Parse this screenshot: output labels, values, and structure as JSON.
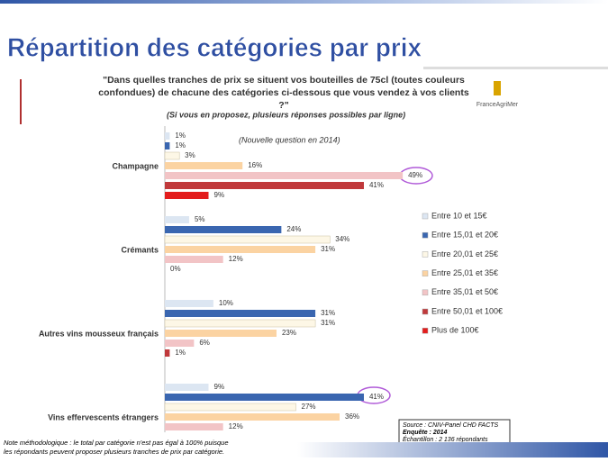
{
  "header": {
    "title": "Répartition des catégories par prix",
    "logo": "FranceAgriMer"
  },
  "chart_data": {
    "type": "bar",
    "orientation": "horizontal",
    "title": "\"Dans quelles tranches de prix se situent vos bouteilles de 75cl (toutes couleurs confondues) de chacune des catégories ci-dessous que vous vendez à vos clients ?\"",
    "subtitle": "(Si vous en proposez, plusieurs réponses possibles par ligne)",
    "annotation": "(Nouvelle question en 2014)",
    "categories": [
      "Champagne",
      "Crémants",
      "Autres vins mousseux français",
      "Vins effervescents étrangers"
    ],
    "series": [
      {
        "name": "Entre 10 et 15€",
        "color": "#dce6f2",
        "values": [
          1,
          5,
          10,
          9
        ],
        "value_labels": [
          "1%",
          "5%",
          "10%",
          "9%"
        ]
      },
      {
        "name": "Entre 15,01 et 20€",
        "color": "#3a66b0",
        "values": [
          1,
          24,
          31,
          41
        ],
        "value_labels": [
          "1%",
          "24%",
          "31%",
          "41%"
        ]
      },
      {
        "name": "Entre 20,01 et 25€",
        "color": "#fdf7e6",
        "values": [
          3,
          34,
          31,
          27
        ],
        "value_labels": [
          "3%",
          "34%",
          "31%",
          "27%"
        ]
      },
      {
        "name": "Entre 25,01 et 35€",
        "color": "#fbd3a2",
        "values": [
          16,
          31,
          23,
          36
        ],
        "value_labels": [
          "16%",
          "31%",
          "23%",
          "36%"
        ]
      },
      {
        "name": "Entre 35,01 et 50€",
        "color": "#f2c4c6",
        "values": [
          49,
          12,
          6,
          12
        ],
        "value_labels": [
          "49%",
          "12%",
          "6%",
          "12%"
        ]
      },
      {
        "name": "Entre 50,01 et 100€",
        "color": "#c0393b",
        "values": [
          41,
          0,
          1,
          null
        ],
        "value_labels": [
          "41%",
          "0%",
          "1%",
          null
        ]
      },
      {
        "name": "Plus de 100€",
        "color": "#e31d1d",
        "values": [
          9,
          null,
          null,
          null
        ],
        "value_labels": [
          "9%",
          null,
          null,
          null
        ]
      }
    ],
    "legend": "right"
  },
  "source": [
    "Source : CNIV-Panel  CHD FACTS",
    "Enquête : 2014",
    "Échantillon : 2 136 répondants"
  ],
  "note": [
    "Note méthodologique : le total par catégorie n'est pas égal à 100% puisque",
    "les répondants peuvent proposer plusieurs tranches de prix par catégorie."
  ]
}
